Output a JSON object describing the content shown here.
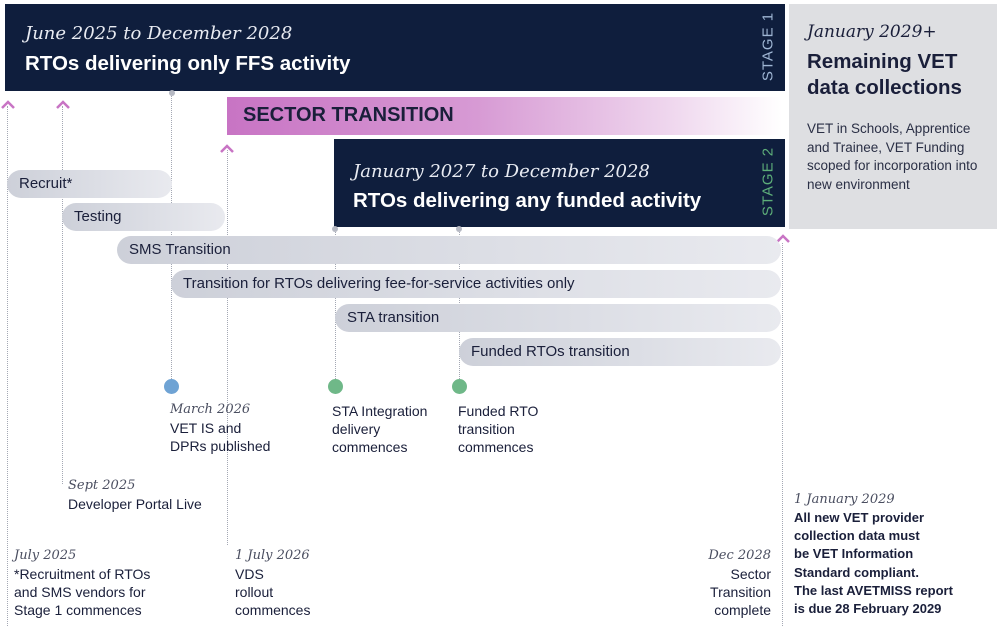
{
  "stage1": {
    "date": "June 2025 to December 2028",
    "title": "RTOs delivering only FFS activity",
    "tag": "STAGE 1",
    "tag_color": "#9fb6d4"
  },
  "stage2": {
    "date": "January 2027 to December 2028",
    "title": "RTOs delivering any funded activity",
    "tag": "STAGE 2",
    "tag_color": "#5dae79"
  },
  "future": {
    "date": "January 2029+",
    "title": "Remaining VET data collections",
    "text": "VET in Schools, Apprentice and Trainee, VET Funding scoped for incorporation into new environment"
  },
  "transition": {
    "label": "SECTOR TRANSITION",
    "color": "#c874c4"
  },
  "bars": [
    {
      "label": "Recruit*"
    },
    {
      "label": "Testing"
    },
    {
      "label": "SMS Transition"
    },
    {
      "label": "Transition for RTOs delivering fee-for-service activities only"
    },
    {
      "label": "STA transition"
    },
    {
      "label": "Funded RTOs transition"
    }
  ],
  "milestones": {
    "march2026": {
      "date": "March 2026",
      "text": "VET IS and\nDPRs published",
      "dot_color": "#6fa3d4"
    },
    "sta": {
      "text": "STA Integration\ndelivery\ncommences",
      "dot_color": "#6fb888"
    },
    "funded": {
      "text": "Funded RTO\ntransition\ncommences",
      "dot_color": "#6fb888"
    },
    "sept2025": {
      "date": "Sept 2025",
      "text": "Developer Portal Live"
    },
    "july2025": {
      "date": "July 2025",
      "text": "*Recruitment of RTOs\nand SMS vendors for\nStage 1 commences"
    },
    "july2026": {
      "date": "1 July 2026",
      "text": "VDS\nrollout\ncommences"
    },
    "dec2028": {
      "date": "Dec 2028",
      "text": "Sector\nTransition\ncomplete"
    },
    "jan2029": {
      "date": "1 January 2029",
      "text": "All new VET provider\ncollection data must\nbe VET Information\nStandard compliant.\nThe last AVETMISS report\nis due 28 February 2029"
    }
  },
  "colors": {
    "navy": "#0f1e3d",
    "grey_panel": "#dedfe2",
    "bar_grey": "#d6d8e0",
    "chevron": "#c874c4"
  }
}
